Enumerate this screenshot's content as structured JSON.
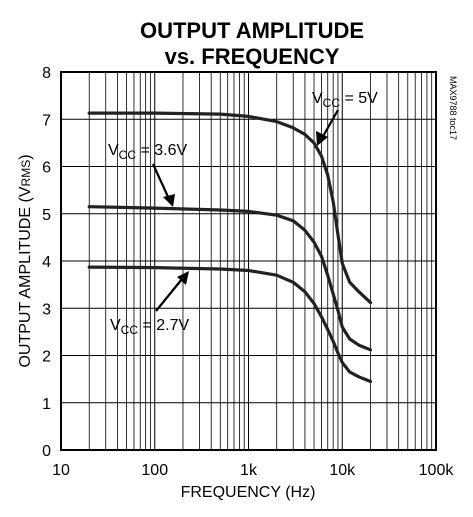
{
  "chart_data": {
    "type": "line",
    "title_line1": "OUTPUT AMPLITUDE",
    "title_line2": "vs. FREQUENCY",
    "xlabel": "FREQUENCY (Hz)",
    "ylabel_main": "OUTPUT AMPLITUDE (V",
    "ylabel_sub": "RMS",
    "ylabel_close": ")",
    "watermark": "MAX9788 toc17",
    "x_scale": "log",
    "xlim": [
      10,
      100000
    ],
    "ylim": [
      0,
      8
    ],
    "x_ticks": [
      {
        "value": 10,
        "label": "10"
      },
      {
        "value": 100,
        "label": "100"
      },
      {
        "value": 1000,
        "label": "1k"
      },
      {
        "value": 10000,
        "label": "10k"
      },
      {
        "value": 100000,
        "label": "100k"
      }
    ],
    "y_ticks": [
      {
        "value": 0,
        "label": "0"
      },
      {
        "value": 1,
        "label": "1"
      },
      {
        "value": 2,
        "label": "2"
      },
      {
        "value": 3,
        "label": "3"
      },
      {
        "value": 4,
        "label": "4"
      },
      {
        "value": 5,
        "label": "5"
      },
      {
        "value": 6,
        "label": "6"
      },
      {
        "value": 7,
        "label": "7"
      },
      {
        "value": 8,
        "label": "8"
      }
    ],
    "grid": true,
    "series": [
      {
        "label_main": "V",
        "label_sub": "CC",
        "label_rest": " = 5V",
        "x": [
          20,
          100,
          500,
          1000,
          2000,
          3000,
          4000,
          5000,
          6000,
          7000,
          8000,
          9000,
          10000,
          12000,
          15000,
          20000
        ],
        "y": [
          7.13,
          7.13,
          7.11,
          7.06,
          6.95,
          6.82,
          6.68,
          6.5,
          6.22,
          5.82,
          5.25,
          4.55,
          3.95,
          3.55,
          3.35,
          3.12
        ]
      },
      {
        "label_main": "V",
        "label_sub": "CC",
        "label_rest": " = 3.6V",
        "x": [
          20,
          100,
          500,
          1000,
          2000,
          3000,
          4000,
          5000,
          6000,
          7000,
          8000,
          9000,
          10000,
          12000,
          15000,
          20000
        ],
        "y": [
          5.15,
          5.12,
          5.08,
          5.05,
          4.97,
          4.85,
          4.65,
          4.4,
          4.1,
          3.7,
          3.3,
          2.95,
          2.6,
          2.35,
          2.22,
          2.12
        ]
      },
      {
        "label_main": "V",
        "label_sub": "CC",
        "label_rest": " = 2.7V",
        "x": [
          20,
          100,
          500,
          1000,
          2000,
          3000,
          4000,
          5000,
          6000,
          7000,
          8000,
          9000,
          10000,
          12000,
          15000,
          20000
        ],
        "y": [
          3.87,
          3.86,
          3.83,
          3.8,
          3.7,
          3.55,
          3.35,
          3.1,
          2.82,
          2.55,
          2.3,
          2.05,
          1.85,
          1.65,
          1.55,
          1.45
        ]
      }
    ]
  }
}
